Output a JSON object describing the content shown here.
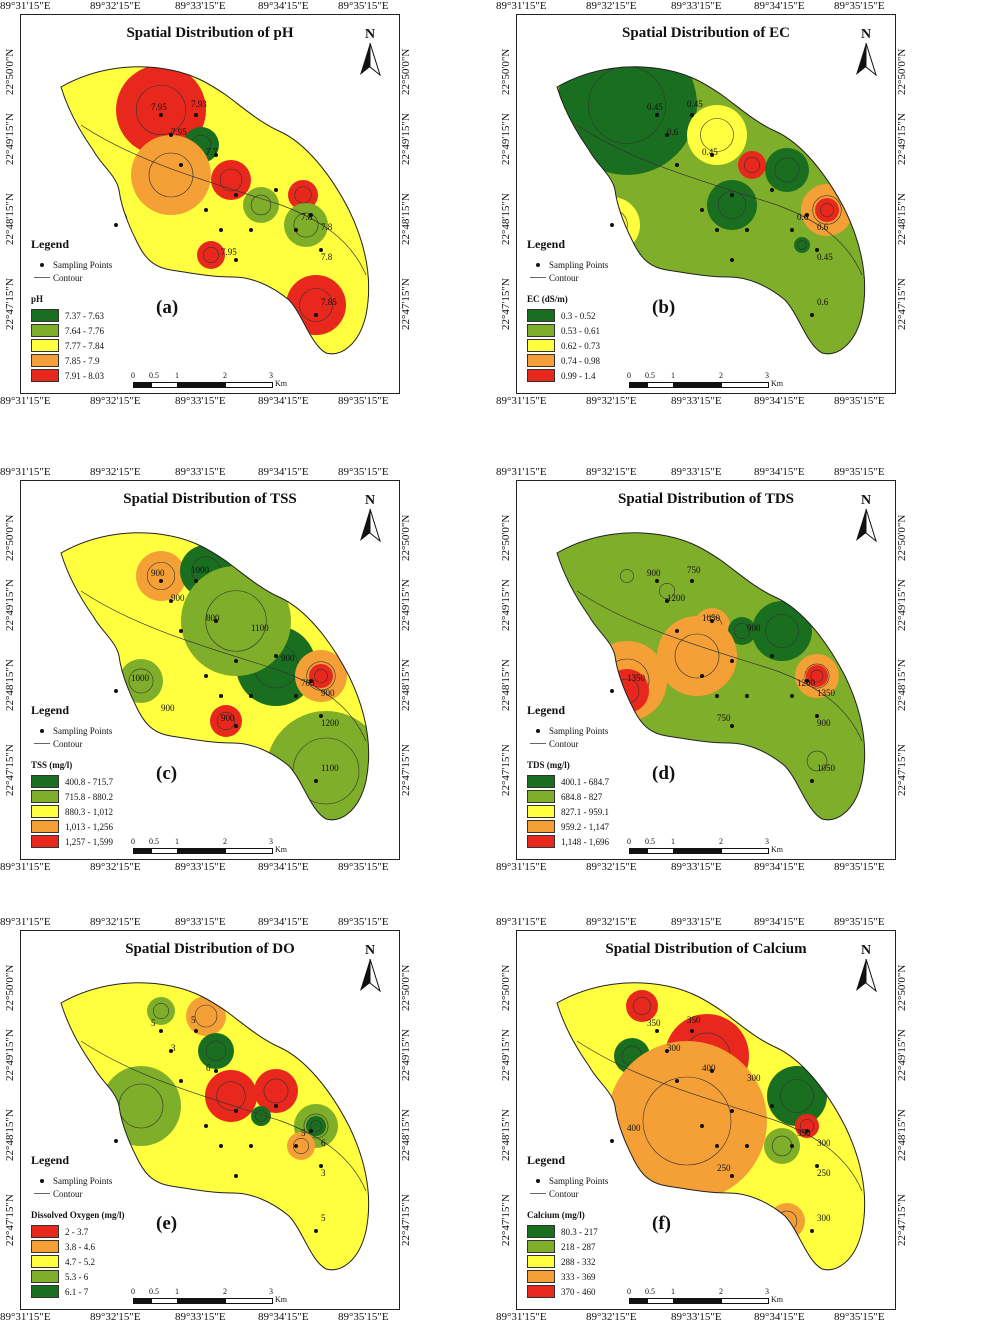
{
  "lon_ticks": [
    "89°31'15\"E",
    "89°32'15\"E",
    "89°33'15\"E",
    "89°34'15\"E",
    "89°35'15\"E"
  ],
  "lat_ticks": [
    "22°50'0\"N",
    "22°49'15\"N",
    "22°48'15\"N",
    "22°47'15\"N"
  ],
  "north_label": "N",
  "legend": {
    "title": "Legend",
    "sampling_points": "Sampling Points",
    "contour": "Contour"
  },
  "scale": {
    "ticks": [
      "0",
      "0.5",
      "1",
      "2",
      "3"
    ],
    "unit": "Km"
  },
  "panels": [
    {
      "title": "Spatial Distribution of pH",
      "label": "(a)",
      "param_title": "pH",
      "classes": [
        {
          "range": "7.37 - 7.63",
          "color": "#1a6e1f"
        },
        {
          "range": "7.64 - 7.76",
          "color": "#7fae2a"
        },
        {
          "range": "7.77 - 7.84",
          "color": "#ffff3f"
        },
        {
          "range": "7.85 - 7.9",
          "color": "#f4a037"
        },
        {
          "range": "7.91 - 8.03",
          "color": "#e8281c"
        }
      ],
      "contour_labels": [
        "7.95",
        "7.93",
        "7.95",
        "7.7",
        "7.8",
        "7.8",
        "7.8",
        "7.85",
        "7.95"
      ]
    },
    {
      "title": "Spatial Distribution of EC",
      "label": "(b)",
      "param_title": "EC (dS/m)",
      "classes": [
        {
          "range": "0.3 - 0.52",
          "color": "#1a6e1f"
        },
        {
          "range": "0.53 - 0.61",
          "color": "#7fae2a"
        },
        {
          "range": "0.62 - 0.73",
          "color": "#ffff3f"
        },
        {
          "range": "0.74 - 0.98",
          "color": "#f4a037"
        },
        {
          "range": "0.99 - 1.4",
          "color": "#e8281c"
        }
      ],
      "contour_labels": [
        "0.45",
        "0.45",
        "0.6",
        "0.45",
        "0.6",
        "0.6",
        "0.45",
        "0.6"
      ]
    },
    {
      "title": "Spatial Distribution of TSS",
      "label": "(c)",
      "param_title": "TSS (mg/l)",
      "classes": [
        {
          "range": "400.8 - 715.7",
          "color": "#1a6e1f"
        },
        {
          "range": "715.8 - 880.2",
          "color": "#7fae2a"
        },
        {
          "range": "880.3 - 1,012",
          "color": "#ffff3f"
        },
        {
          "range": "1,013 - 1,256",
          "color": "#f4a037"
        },
        {
          "range": "1,257 - 1,599",
          "color": "#e8281c"
        }
      ],
      "contour_labels": [
        "900",
        "1000",
        "900",
        "800",
        "700",
        "900",
        "1200",
        "1100",
        "900",
        "1000",
        "1100",
        "900",
        "900"
      ]
    },
    {
      "title": "Spatial Distribution of TDS",
      "label": "(d)",
      "param_title": "TDS (mg/l)",
      "classes": [
        {
          "range": "400.1 - 684.7",
          "color": "#1a6e1f"
        },
        {
          "range": "684.8 - 827",
          "color": "#7fae2a"
        },
        {
          "range": "827.1 - 959.1",
          "color": "#ffff3f"
        },
        {
          "range": "959.2 - 1,147",
          "color": "#f4a037"
        },
        {
          "range": "1,148 - 1,696",
          "color": "#e8281c"
        }
      ],
      "contour_labels": [
        "900",
        "750",
        "1200",
        "1050",
        "1200",
        "1350",
        "900",
        "1050",
        "750",
        "1350",
        "900"
      ]
    },
    {
      "title": "Spatial Distribution of DO",
      "label": "(e)",
      "param_title": "Dissolved Oxygen (mg/l)",
      "classes": [
        {
          "range": "2 - 3.7",
          "color": "#e8281c"
        },
        {
          "range": "3.8 - 4.6",
          "color": "#f4a037"
        },
        {
          "range": "4.7 - 5.2",
          "color": "#ffff3f"
        },
        {
          "range": "5.3 - 6",
          "color": "#7fae2a"
        },
        {
          "range": "6.1 - 7",
          "color": "#1a6e1f"
        }
      ],
      "contour_labels": [
        "5",
        "5",
        "3",
        "6",
        "5",
        "6",
        "3",
        "5"
      ]
    },
    {
      "title": "Spatial Distribution of Calcium",
      "label": "(f)",
      "param_title": "Calcium (mg/l)",
      "classes": [
        {
          "range": "80.3 - 217",
          "color": "#1a6e1f"
        },
        {
          "range": "218 - 287",
          "color": "#7fae2a"
        },
        {
          "range": "288 - 332",
          "color": "#ffff3f"
        },
        {
          "range": "333 - 369",
          "color": "#f4a037"
        },
        {
          "range": "370 - 460",
          "color": "#e8281c"
        }
      ],
      "contour_labels": [
        "350",
        "350",
        "300",
        "400",
        "350",
        "300",
        "250",
        "300",
        "250",
        "400",
        "300"
      ]
    }
  ]
}
